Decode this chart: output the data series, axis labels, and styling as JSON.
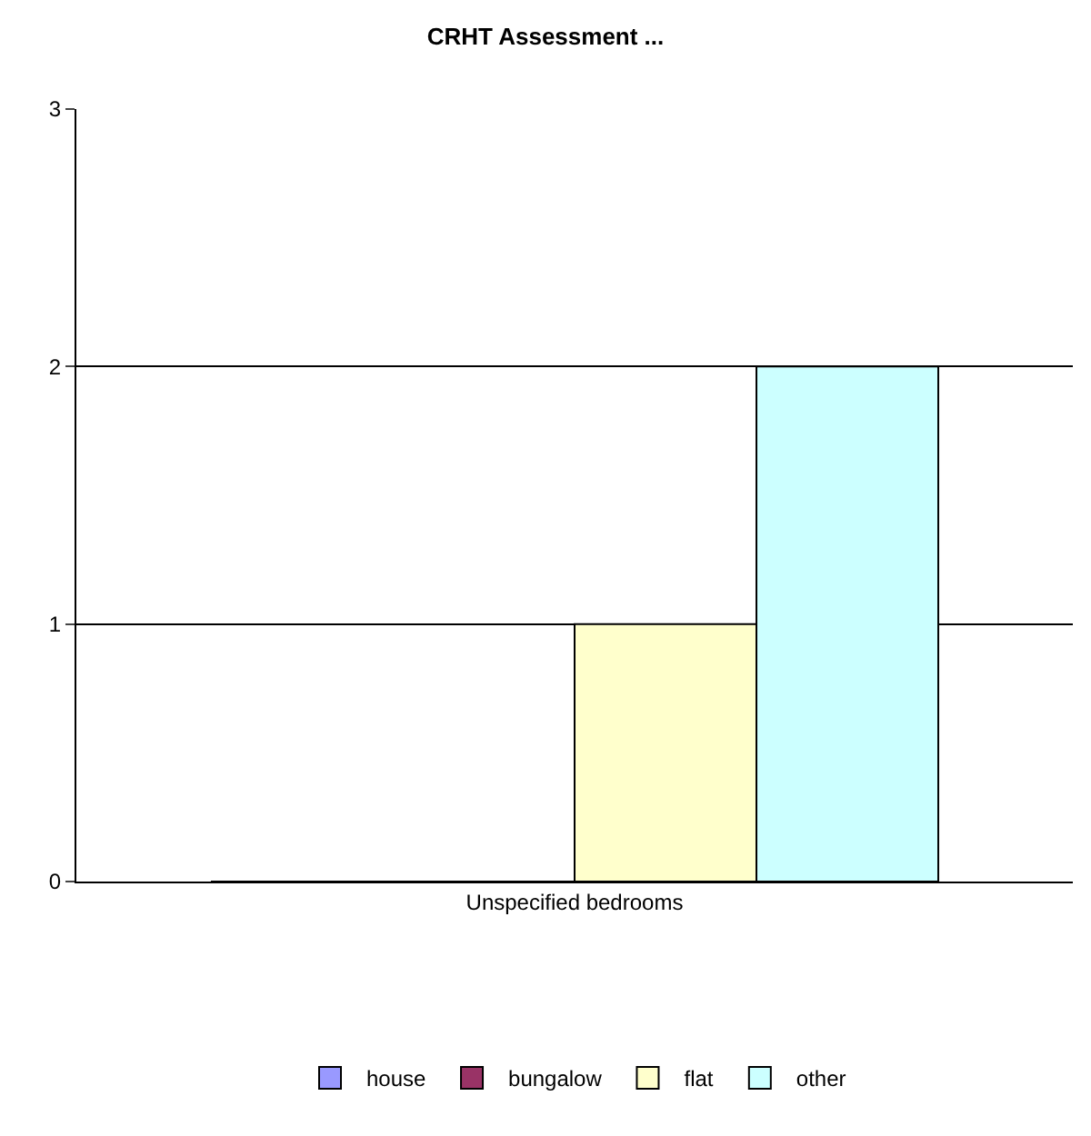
{
  "chart_data": {
    "type": "bar",
    "title": "CRHT Assessment ...",
    "categories": [
      "Unspecified bedrooms"
    ],
    "series": [
      {
        "name": "house",
        "color": "#9999ff",
        "values": [
          0
        ]
      },
      {
        "name": "bungalow",
        "color": "#993366",
        "values": [
          0
        ]
      },
      {
        "name": "flat",
        "color": "#ffffcc",
        "values": [
          1
        ]
      },
      {
        "name": "other",
        "color": "#ccffff",
        "values": [
          2
        ]
      }
    ],
    "ylim": [
      0,
      3
    ],
    "yticks": [
      0,
      1,
      2,
      3
    ],
    "grid": "y",
    "legend": "bottom"
  }
}
